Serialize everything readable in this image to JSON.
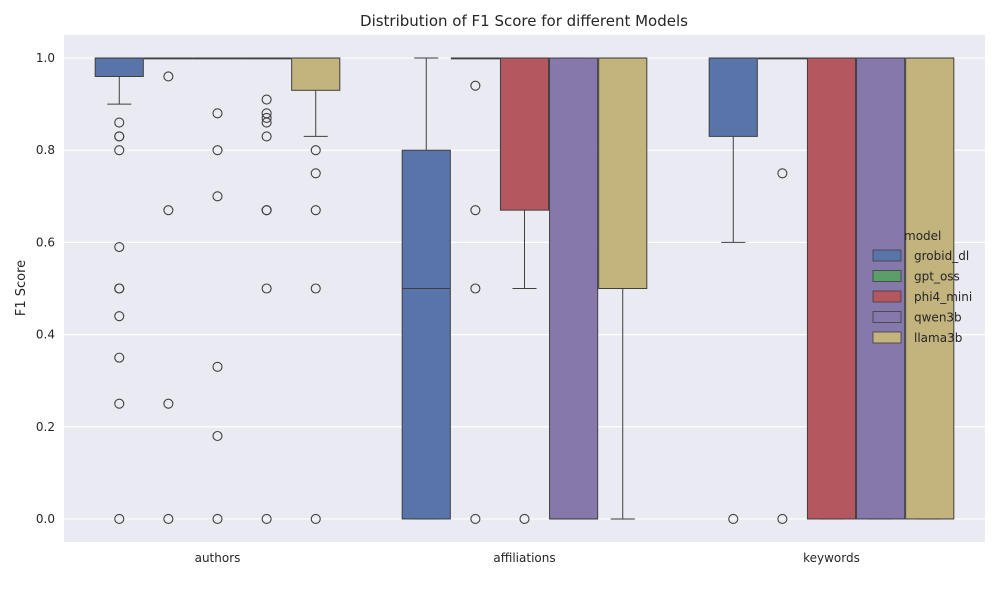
{
  "chart_data": {
    "type": "box",
    "title": "Distribution of F1 Score for different Models",
    "xlabel": "",
    "ylabel": "F1 Score",
    "ylim": [
      -0.05,
      1.05
    ],
    "yticks": [
      "0.0",
      "0.2",
      "0.4",
      "0.6",
      "0.8",
      "1.0"
    ],
    "categories": [
      "authors",
      "affiliations",
      "keywords"
    ],
    "grid": true,
    "legend": {
      "title": "model",
      "placement": "right"
    },
    "series": [
      {
        "name": "grobid_dl",
        "color": "#5874a8",
        "boxes": [
          {
            "q1": 0.96,
            "median": 1.0,
            "q3": 1.0,
            "whisker_low": 0.9,
            "whisker_high": 1.0,
            "outliers": [
              0.86,
              0.83,
              0.83,
              0.8,
              0.59,
              0.5,
              0.5,
              0.44,
              0.35,
              0.25,
              0.0
            ]
          },
          {
            "q1": 0.0,
            "median": 0.5,
            "q3": 0.8,
            "whisker_low": 0.0,
            "whisker_high": 1.0,
            "outliers": []
          },
          {
            "q1": 0.83,
            "median": 1.0,
            "q3": 1.0,
            "whisker_low": 0.6,
            "whisker_high": 1.0,
            "outliers": [
              0.0
            ]
          }
        ]
      },
      {
        "name": "gpt_oss",
        "color": "#5b9e6a",
        "boxes": [
          {
            "q1": 1.0,
            "median": 1.0,
            "q3": 1.0,
            "whisker_low": 1.0,
            "whisker_high": 1.0,
            "outliers": [
              0.96,
              0.67,
              0.25,
              0.0
            ]
          },
          {
            "q1": 1.0,
            "median": 1.0,
            "q3": 1.0,
            "whisker_low": 1.0,
            "whisker_high": 1.0,
            "outliers": [
              0.94,
              0.67,
              0.5,
              0.0
            ]
          },
          {
            "q1": 1.0,
            "median": 1.0,
            "q3": 1.0,
            "whisker_low": 1.0,
            "whisker_high": 1.0,
            "outliers": [
              0.75,
              0.0
            ]
          }
        ]
      },
      {
        "name": "phi4_mini",
        "color": "#b5575f",
        "boxes": [
          {
            "q1": 1.0,
            "median": 1.0,
            "q3": 1.0,
            "whisker_low": 1.0,
            "whisker_high": 1.0,
            "outliers": [
              0.88,
              0.8,
              0.7,
              0.33,
              0.18,
              0.0
            ]
          },
          {
            "q1": 0.67,
            "median": 1.0,
            "q3": 1.0,
            "whisker_low": 0.5,
            "whisker_high": 1.0,
            "outliers": [
              0.0
            ]
          },
          {
            "q1": 0.0,
            "median": 1.0,
            "q3": 1.0,
            "whisker_low": 0.0,
            "whisker_high": 1.0,
            "outliers": []
          }
        ]
      },
      {
        "name": "qwen3b",
        "color": "#8678aa",
        "boxes": [
          {
            "q1": 1.0,
            "median": 1.0,
            "q3": 1.0,
            "whisker_low": 1.0,
            "whisker_high": 1.0,
            "outliers": [
              0.91,
              0.88,
              0.87,
              0.86,
              0.83,
              0.67,
              0.67,
              0.5,
              0.0
            ]
          },
          {
            "q1": 0.0,
            "median": 0.0,
            "q3": 1.0,
            "whisker_low": 0.0,
            "whisker_high": 1.0,
            "outliers": []
          },
          {
            "q1": 0.0,
            "median": 1.0,
            "q3": 1.0,
            "whisker_low": 0.0,
            "whisker_high": 1.0,
            "outliers": []
          }
        ]
      },
      {
        "name": "llama3b",
        "color": "#c3b37d",
        "boxes": [
          {
            "q1": 0.93,
            "median": 1.0,
            "q3": 1.0,
            "whisker_low": 0.83,
            "whisker_high": 1.0,
            "outliers": [
              0.8,
              0.75,
              0.67,
              0.5,
              0.0
            ]
          },
          {
            "q1": 0.5,
            "median": 1.0,
            "q3": 1.0,
            "whisker_low": 0.0,
            "whisker_high": 1.0,
            "outliers": []
          },
          {
            "q1": 0.0,
            "median": 1.0,
            "q3": 1.0,
            "whisker_low": 0.0,
            "whisker_high": 1.0,
            "outliers": []
          }
        ]
      }
    ]
  }
}
